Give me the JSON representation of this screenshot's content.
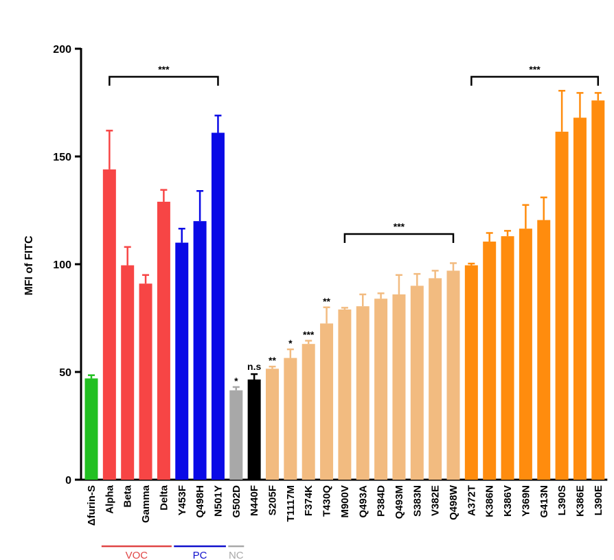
{
  "chart_data": {
    "type": "bar",
    "ylabel": "MFI of FITC",
    "ylim": [
      0,
      200
    ],
    "yticks": [
      0,
      50,
      100,
      150,
      200
    ],
    "categories": [
      "Δfurin-S",
      "Alpha",
      "Beta",
      "Gamma",
      "Delta",
      "Y453F",
      "Q498H",
      "N501Y",
      "G502D",
      "N440F",
      "S205F",
      "T1117M",
      "F374K",
      "T430Q",
      "M900V",
      "Q493A",
      "P384D",
      "Q493M",
      "S383N",
      "V382E",
      "Q498W",
      "A372T",
      "K386N",
      "K386V",
      "Y369N",
      "G413N",
      "L390S",
      "K386E",
      "L390E"
    ],
    "values": [
      47,
      144,
      99.5,
      91,
      129,
      110,
      120,
      161,
      41.5,
      46.5,
      51.5,
      56.5,
      63,
      72.5,
      79,
      80.5,
      84,
      86,
      90,
      93.5,
      97,
      99.5,
      110.5,
      113,
      116.5,
      120.5,
      161.5,
      168,
      176
    ],
    "errors": [
      1.5,
      18,
      8.5,
      4,
      5.5,
      6.5,
      14,
      8,
      1.5,
      2.5,
      1,
      4,
      1.5,
      7.5,
      0.8,
      5.5,
      2.5,
      9,
      5.5,
      3.5,
      3.5,
      0.8,
      4,
      2.5,
      11,
      10.5,
      19,
      11.5,
      3.5
    ],
    "colors": [
      "#22c022",
      "#f74545",
      "#f74545",
      "#f74545",
      "#f74545",
      "#0a0ae6",
      "#0a0ae6",
      "#0a0ae6",
      "#a8a8a8",
      "#000000",
      "#f2bb80",
      "#f2bb80",
      "#f2bb80",
      "#f2bb80",
      "#f2bb80",
      "#f2bb80",
      "#f2bb80",
      "#f2bb80",
      "#f2bb80",
      "#f2bb80",
      "#f2bb80",
      "#ff8c0e",
      "#ff8c0e",
      "#ff8c0e",
      "#ff8c0e",
      "#ff8c0e",
      "#ff8c0e",
      "#ff8c0e",
      "#ff8c0e"
    ],
    "significance": [
      {
        "index": 8,
        "label": "*"
      },
      {
        "index": 9,
        "label": "n.s"
      },
      {
        "index": 10,
        "label": "**"
      },
      {
        "index": 11,
        "label": "*"
      },
      {
        "index": 12,
        "label": "***"
      },
      {
        "index": 13,
        "label": "**"
      }
    ],
    "brackets": [
      {
        "from": 1,
        "to": 7,
        "label": "***",
        "y": 187
      },
      {
        "from": 14,
        "to": 20,
        "label": "***",
        "y": 114
      },
      {
        "from": 21,
        "to": 28,
        "label": "***",
        "y": 187
      }
    ],
    "groups": [
      {
        "label": "VOC",
        "from": 1,
        "to": 4,
        "color": "#e04545"
      },
      {
        "label": "PC",
        "from": 5,
        "to": 7,
        "color": "#1010cc"
      },
      {
        "label": "NC",
        "from": 8,
        "to": 8,
        "color": "#a8a8a8"
      }
    ]
  }
}
